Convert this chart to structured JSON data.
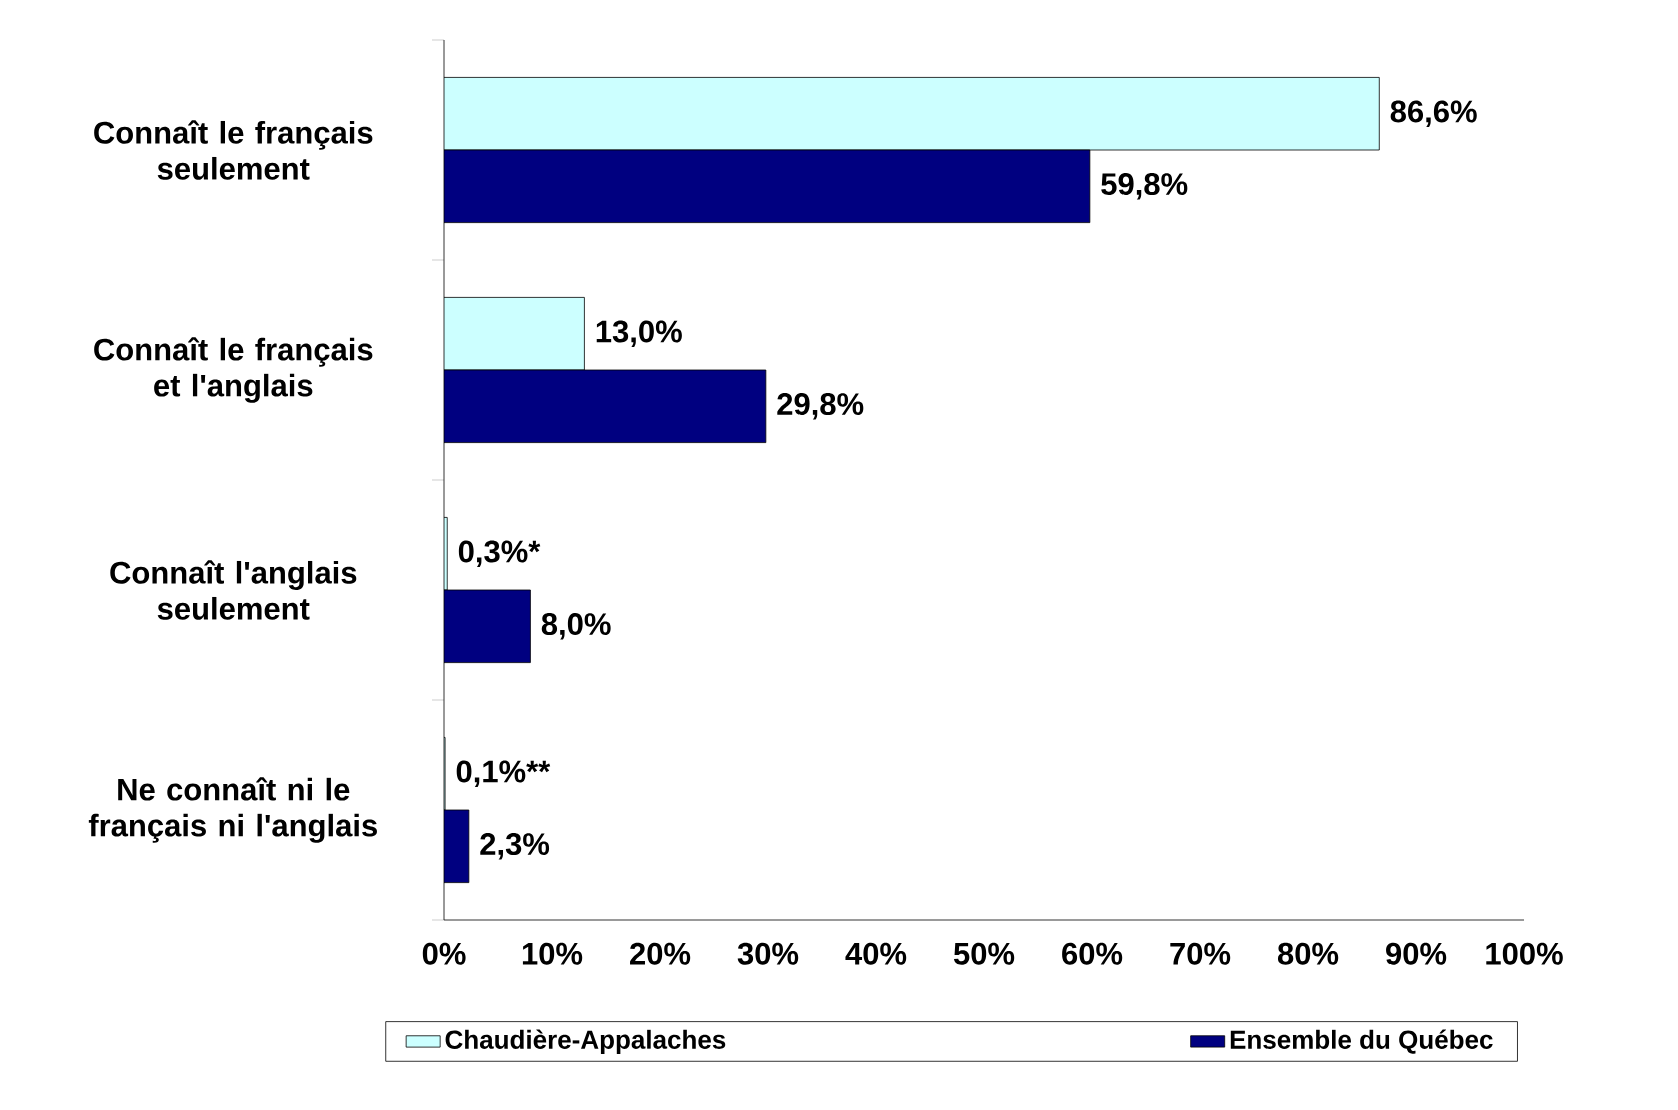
{
  "chart_data": {
    "type": "bar",
    "orientation": "horizontal",
    "categories": [
      "Connaît le français seulement",
      "Connaît le français et l'anglais",
      "Connaît l'anglais seulement",
      "Ne connaît ni le français ni l'anglais"
    ],
    "series": [
      {
        "name": "Chaudière-Appalaches",
        "color": "#ccffff",
        "values": [
          86.6,
          13.0,
          0.3,
          0.1
        ],
        "value_labels": [
          "86,6%",
          "13,0%",
          "0,3%*",
          "0,1%**"
        ]
      },
      {
        "name": "Ensemble du Québec",
        "color": "#000080",
        "values": [
          59.8,
          29.8,
          8.0,
          2.3
        ],
        "value_labels": [
          "59,8%",
          "29,8%",
          "8,0%",
          "2,3%"
        ]
      }
    ],
    "xlim": [
      0,
      100
    ],
    "xticks": [
      {
        "value": 0,
        "label": "0%"
      },
      {
        "value": 10,
        "label": "10%"
      },
      {
        "value": 20,
        "label": "20%"
      },
      {
        "value": 30,
        "label": "30%"
      },
      {
        "value": 40,
        "label": "40%"
      },
      {
        "value": 50,
        "label": "50%"
      },
      {
        "value": 60,
        "label": "60%"
      },
      {
        "value": 70,
        "label": "70%"
      },
      {
        "value": 80,
        "label": "80%"
      },
      {
        "value": 90,
        "label": "90%"
      },
      {
        "value": 100,
        "label": "100%"
      }
    ],
    "grid": false,
    "legend": "bottom"
  }
}
